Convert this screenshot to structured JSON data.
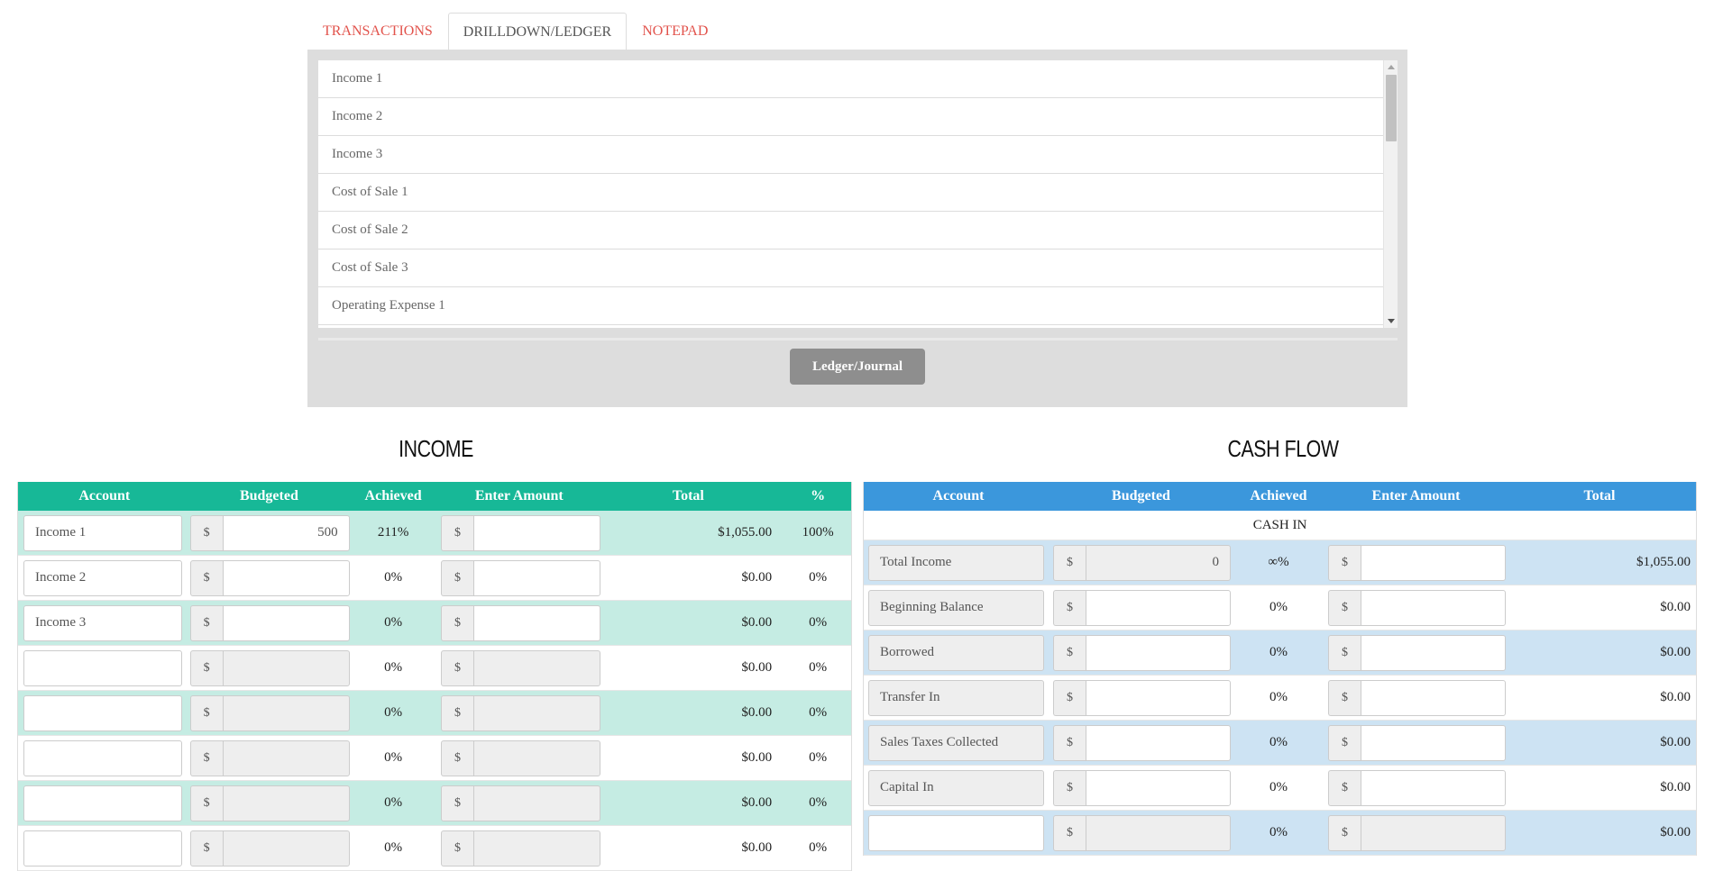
{
  "tabs": [
    {
      "label": "TRANSACTIONS",
      "active": false
    },
    {
      "label": "DRILLDOWN/LEDGER",
      "active": true
    },
    {
      "label": "NOTEPAD",
      "active": false
    }
  ],
  "drilldown": {
    "items": [
      "Income 1",
      "Income 2",
      "Income 3",
      "Cost of Sale 1",
      "Cost of Sale 2",
      "Cost of Sale 3",
      "Operating Expense 1"
    ],
    "button_label": "Ledger/Journal"
  },
  "income": {
    "title": "INCOME",
    "headers": [
      "Account",
      "Budgeted",
      "Achieved",
      "Enter Amount",
      "Total",
      "%"
    ],
    "currency_symbol": "$",
    "rows": [
      {
        "account": "Income 1",
        "budgeted": "500",
        "achieved": "211%",
        "enter": "",
        "total": "$1,055.00",
        "pct": "100%"
      },
      {
        "account": "Income 2",
        "budgeted": "",
        "achieved": "0%",
        "enter": "",
        "total": "$0.00",
        "pct": "0%"
      },
      {
        "account": "Income 3",
        "budgeted": "",
        "achieved": "0%",
        "enter": "",
        "total": "$0.00",
        "pct": "0%"
      },
      {
        "account": "",
        "budgeted": "",
        "achieved": "0%",
        "enter": "",
        "total": "$0.00",
        "pct": "0%"
      },
      {
        "account": "",
        "budgeted": "",
        "achieved": "0%",
        "enter": "",
        "total": "$0.00",
        "pct": "0%"
      },
      {
        "account": "",
        "budgeted": "",
        "achieved": "0%",
        "enter": "",
        "total": "$0.00",
        "pct": "0%"
      },
      {
        "account": "",
        "budgeted": "",
        "achieved": "0%",
        "enter": "",
        "total": "$0.00",
        "pct": "0%"
      },
      {
        "account": "",
        "budgeted": "",
        "achieved": "0%",
        "enter": "",
        "total": "$0.00",
        "pct": "0%"
      }
    ]
  },
  "cashflow": {
    "title": "CASH FLOW",
    "headers": [
      "Account",
      "Budgeted",
      "Achieved",
      "Enter Amount",
      "Total"
    ],
    "subheader": "CASH IN",
    "currency_symbol": "$",
    "rows": [
      {
        "account": "Total Income",
        "budgeted": "0",
        "achieved": "∞%",
        "enter": "",
        "total": "$1,055.00"
      },
      {
        "account": "Beginning Balance",
        "budgeted": "",
        "achieved": "0%",
        "enter": "",
        "total": "$0.00"
      },
      {
        "account": "Borrowed",
        "budgeted": "",
        "achieved": "0%",
        "enter": "",
        "total": "$0.00"
      },
      {
        "account": "Transfer In",
        "budgeted": "",
        "achieved": "0%",
        "enter": "",
        "total": "$0.00"
      },
      {
        "account": "Sales Taxes Collected",
        "budgeted": "",
        "achieved": "0%",
        "enter": "",
        "total": "$0.00"
      },
      {
        "account": "Capital In",
        "budgeted": "",
        "achieved": "0%",
        "enter": "",
        "total": "$0.00"
      },
      {
        "account": "",
        "budgeted": "",
        "achieved": "0%",
        "enter": "",
        "total": "$0.00"
      }
    ]
  }
}
